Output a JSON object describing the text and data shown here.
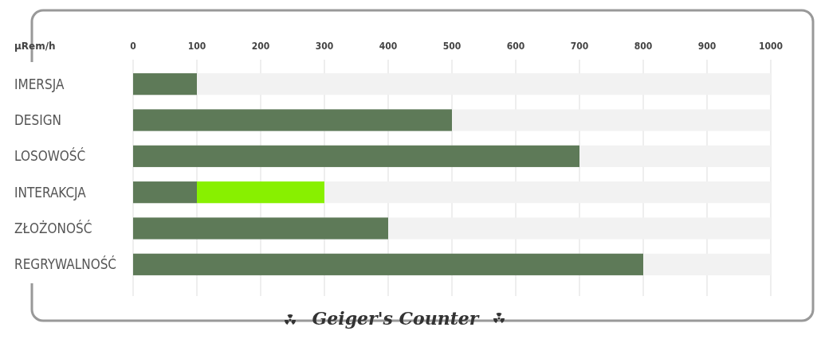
{
  "chart_data": {
    "type": "bar",
    "orientation": "horizontal",
    "stacked": true,
    "title": "Geiger's Counter",
    "xlabel": "µRem/h",
    "categories": [
      "IMERSJA",
      "DESIGN",
      "LOSOWOŚĆ",
      "INTERAKCJA",
      "ZŁOŻONOŚĆ",
      "REGRYWALNOŚĆ"
    ],
    "series": [
      {
        "color": "#5e7a58",
        "values": [
          100,
          500,
          700,
          100,
          400,
          800
        ]
      },
      {
        "color": "#88f000",
        "values": [
          0,
          0,
          0,
          200,
          0,
          0
        ]
      }
    ],
    "xlim": [
      0,
      1000
    ],
    "xticks": [
      0,
      100,
      200,
      300,
      400,
      500,
      600,
      700,
      800,
      900,
      1000
    ],
    "grid": "x"
  }
}
